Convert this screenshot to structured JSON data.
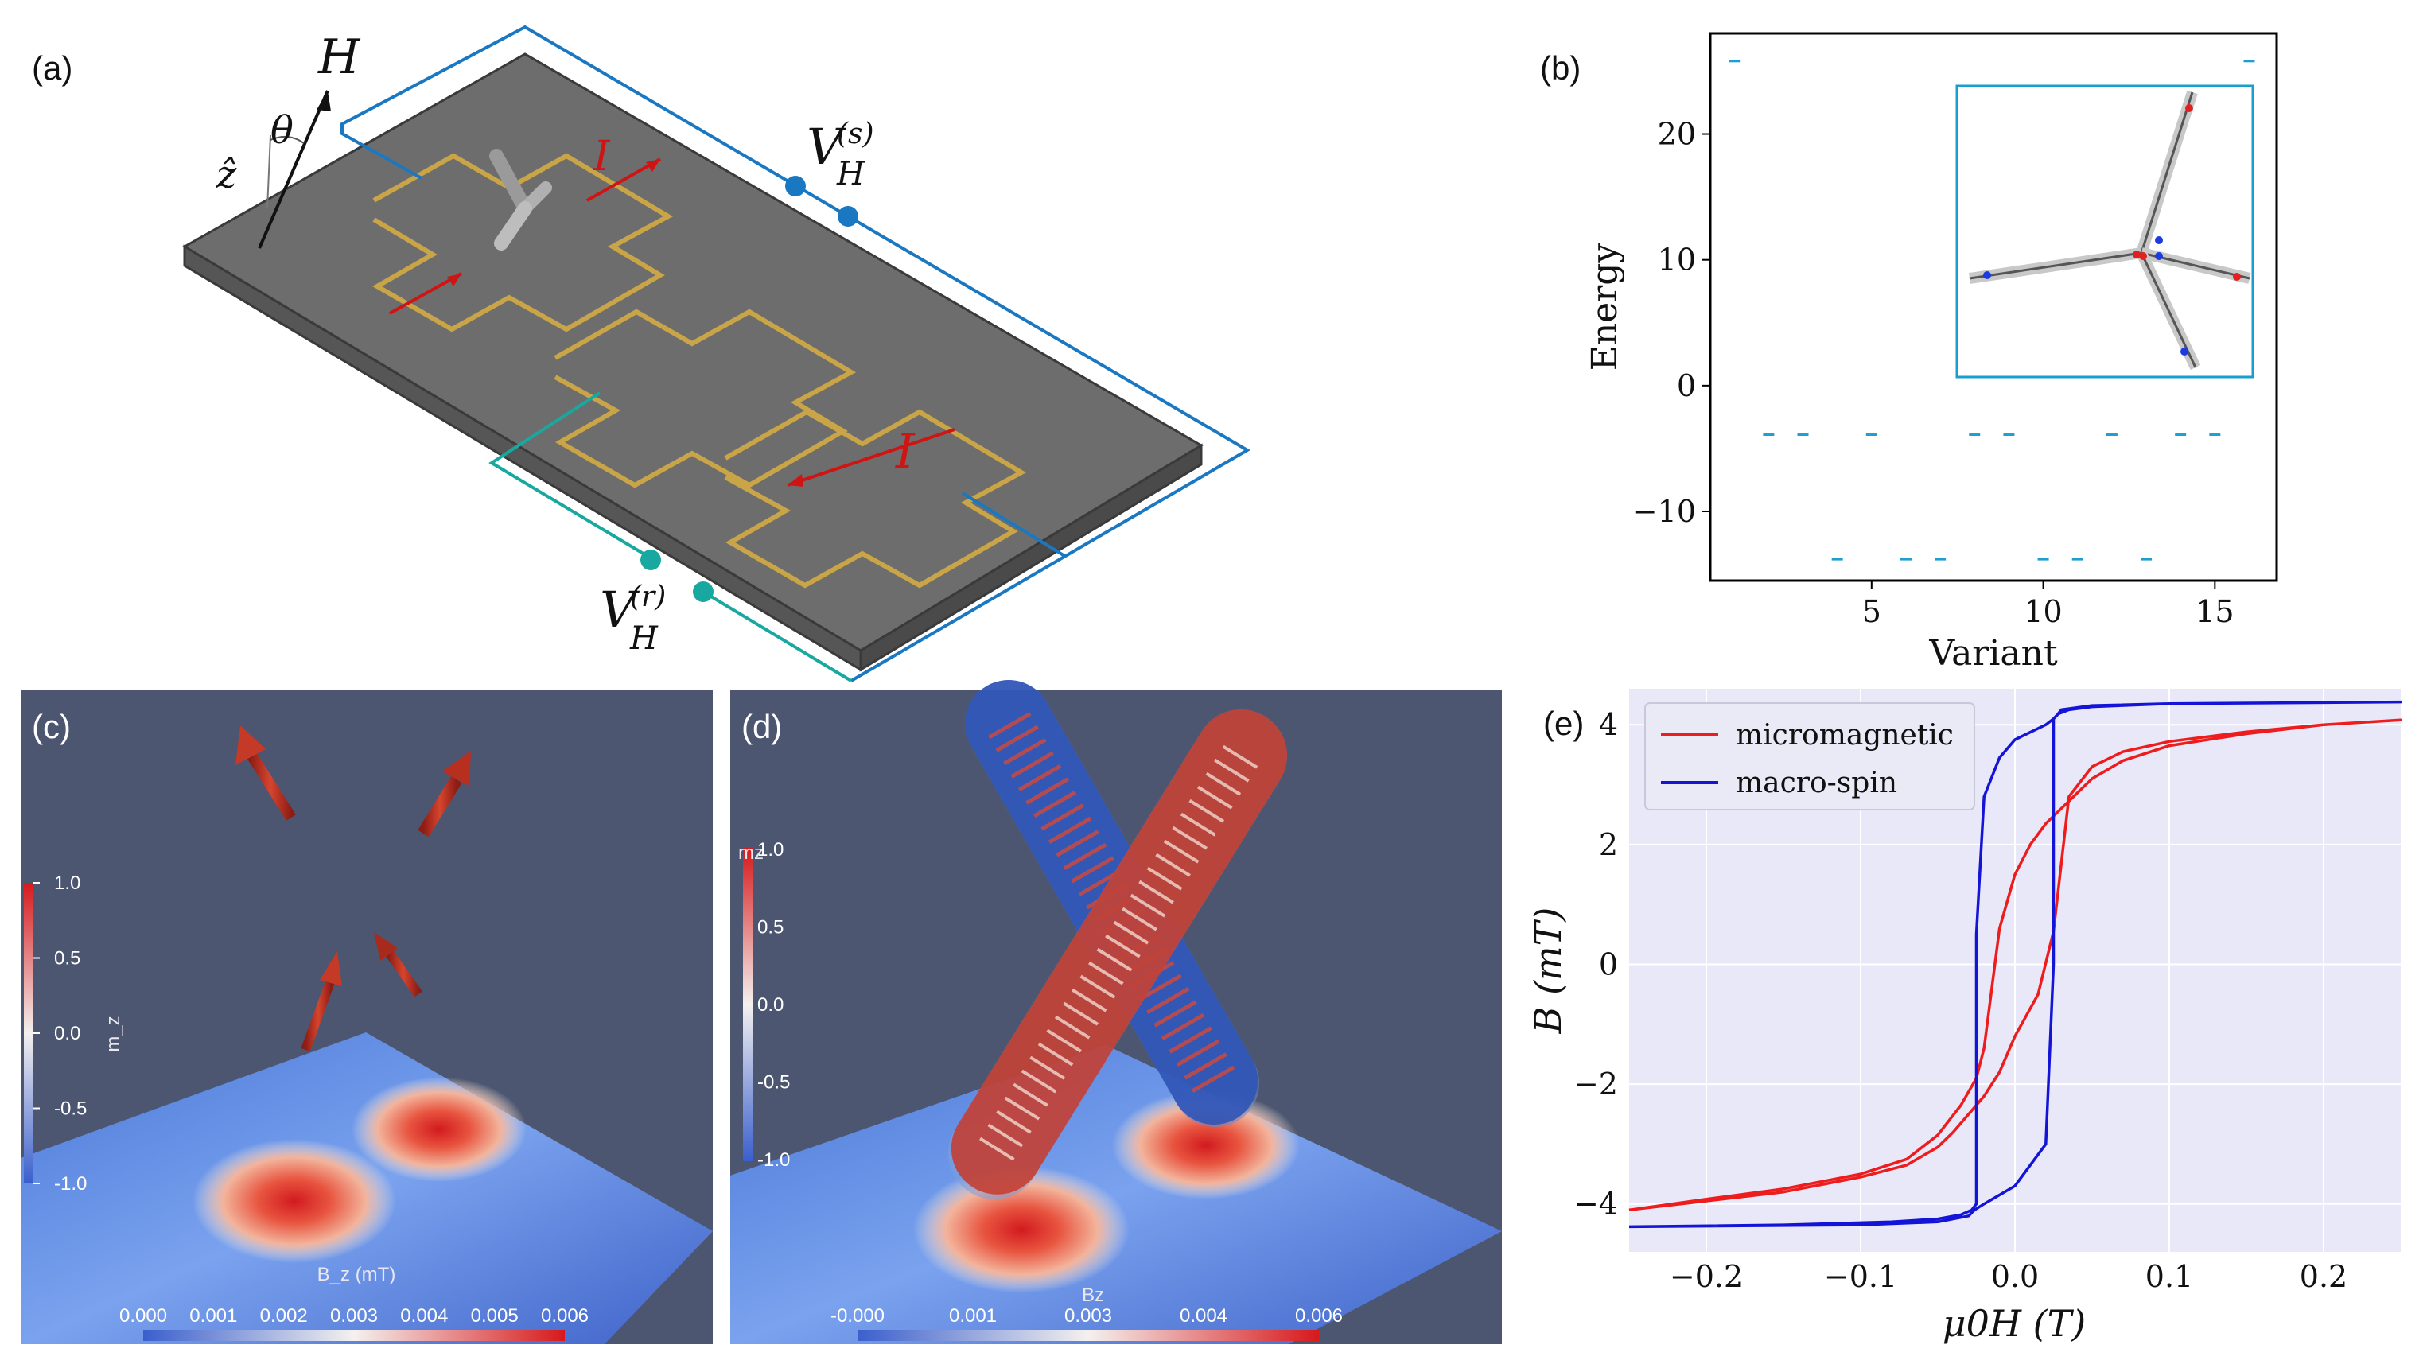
{
  "panels": {
    "a": "(a)",
    "b": "(b)",
    "c": "(c)",
    "d": "(d)",
    "e": "(e)"
  },
  "schematic": {
    "H": "H",
    "theta": "θ",
    "zhat": "ẑ",
    "I_top": "I",
    "I_bottom": "I",
    "VHs_base": "V",
    "VHs_sub": "H",
    "VHs_sup": "(s)",
    "VHr_base": "V",
    "VHr_sub": "H",
    "VHr_sup": "(r)"
  },
  "colorbar_c": {
    "vertical_title": "m_z",
    "vertical_ticks": [
      "1.0",
      "0.5",
      "0.0",
      "-0.5",
      "-1.0"
    ],
    "horizontal_title": "B_z (mT)",
    "horizontal_ticks": [
      "0.000",
      "0.001",
      "0.002",
      "0.003",
      "0.004",
      "0.005",
      "0.006"
    ]
  },
  "colorbar_d": {
    "vertical_title": "mz",
    "vertical_ticks": [
      "1.0",
      "0.5",
      "0.0",
      "-0.5",
      "-1.0"
    ],
    "horizontal_title": "Bz",
    "horizontal_ticks": [
      "-0.000",
      "0.001",
      "0.003",
      "0.004",
      "0.006"
    ]
  },
  "chart_data": [
    {
      "id": "b",
      "type": "scatter",
      "marker": "short horizontal dash",
      "color": "#1f9fd0",
      "xlabel": "Variant",
      "ylabel": "Energy",
      "xlim": [
        0.3,
        16.8
      ],
      "ylim": [
        -15.5,
        28
      ],
      "xticks": [
        5,
        10,
        15
      ],
      "yticks": [
        -10,
        0,
        10,
        20
      ],
      "x": [
        1,
        2,
        3,
        5,
        8,
        9,
        12,
        14,
        15,
        16,
        4,
        6,
        7,
        10,
        11,
        13
      ],
      "y": [
        25.8,
        -3.9,
        -3.9,
        -3.9,
        -3.9,
        -3.9,
        -3.9,
        -3.9,
        -3.9,
        25.8,
        -13.8,
        -13.8,
        -13.8,
        -13.8,
        -13.8,
        -13.8
      ]
    },
    {
      "id": "e",
      "type": "line",
      "xlabel": "μ0H (T)",
      "ylabel": "B (mT)",
      "xlim": [
        -0.25,
        0.25
      ],
      "ylim": [
        -4.8,
        4.6
      ],
      "xticks": [
        -0.2,
        -0.1,
        0.0,
        0.1,
        0.2
      ],
      "xtick_labels": [
        "−0.2",
        "−0.1",
        "0.0",
        "0.1",
        "0.2"
      ],
      "yticks": [
        -4,
        -2,
        0,
        2,
        4
      ],
      "ytick_labels": [
        "−4",
        "−2",
        "0",
        "2",
        "4"
      ],
      "legend_position": "top-left",
      "series": [
        {
          "name": "micromagnetic",
          "color": "#ee1c1c",
          "x": [
            -0.25,
            -0.2,
            -0.15,
            -0.1,
            -0.07,
            -0.05,
            -0.035,
            -0.025,
            -0.02,
            -0.01,
            0.0,
            0.01,
            0.02,
            0.03,
            0.04,
            0.05,
            0.07,
            0.1,
            0.15,
            0.2,
            0.25,
            0.2,
            0.15,
            0.1,
            0.07,
            0.05,
            0.035,
            0.025,
            0.015,
            0.0,
            -0.01,
            -0.02,
            -0.03,
            -0.04,
            -0.05,
            -0.07,
            -0.1,
            -0.15,
            -0.2,
            -0.25
          ],
          "y": [
            -4.1,
            -3.92,
            -3.75,
            -3.5,
            -3.25,
            -2.85,
            -2.35,
            -1.9,
            -1.4,
            0.6,
            1.5,
            2.0,
            2.35,
            2.6,
            2.85,
            3.1,
            3.4,
            3.65,
            3.85,
            4.0,
            4.08,
            4.0,
            3.88,
            3.72,
            3.55,
            3.3,
            2.8,
            0.55,
            -0.5,
            -1.2,
            -1.8,
            -2.2,
            -2.5,
            -2.8,
            -3.05,
            -3.35,
            -3.55,
            -3.8,
            -3.95,
            -4.1
          ]
        },
        {
          "name": "macro-spin",
          "color": "#1414d8",
          "x": [
            -0.25,
            -0.15,
            -0.08,
            -0.05,
            -0.035,
            -0.028,
            -0.025,
            -0.025,
            -0.02,
            -0.01,
            0.0,
            0.02,
            0.025,
            0.027,
            0.03,
            0.05,
            0.1,
            0.25,
            0.1,
            0.05,
            0.035,
            0.028,
            0.025,
            0.025,
            0.02,
            0.0,
            -0.02,
            -0.025,
            -0.027,
            -0.03,
            -0.05,
            -0.1,
            -0.25
          ],
          "y": [
            -4.38,
            -4.35,
            -4.3,
            -4.25,
            -4.18,
            -4.1,
            -4.0,
            0.5,
            2.8,
            3.45,
            3.75,
            4.0,
            4.1,
            4.15,
            4.25,
            4.32,
            4.35,
            4.38,
            4.35,
            4.3,
            4.25,
            4.18,
            4.1,
            0.0,
            -3.0,
            -3.7,
            -4.0,
            -4.08,
            -4.12,
            -4.2,
            -4.3,
            -4.35,
            -4.38
          ]
        }
      ]
    }
  ]
}
